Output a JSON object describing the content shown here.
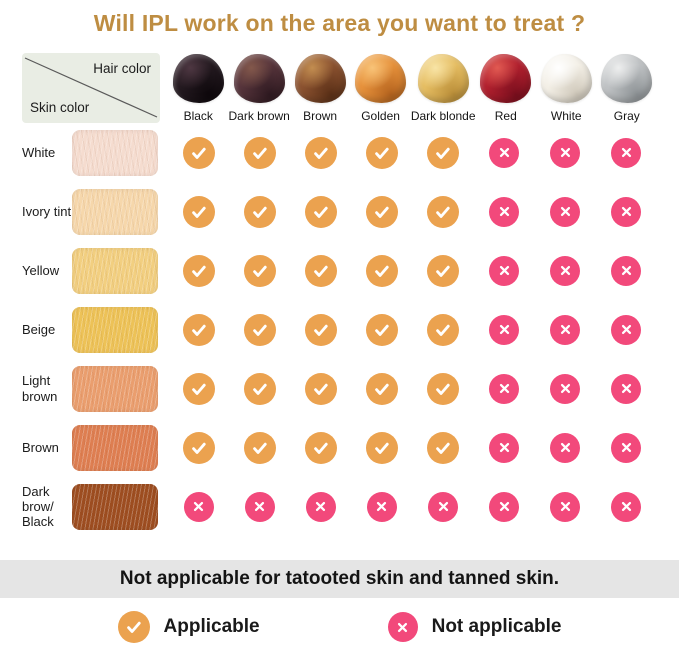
{
  "title": "Will IPL work on the area you want to treat ?",
  "axes": {
    "hair_label": "Hair color",
    "skin_label": "Skin color"
  },
  "hair_colors": [
    {
      "name": "Black",
      "base": "#241a20",
      "hi": "#4e3742",
      "lo": "#0e080c"
    },
    {
      "name": "Dark brown",
      "base": "#56343b",
      "hi": "#83584b",
      "lo": "#2f1a21"
    },
    {
      "name": "Brown",
      "base": "#8b5230",
      "hi": "#c28d50",
      "lo": "#5b3017"
    },
    {
      "name": "Golden",
      "base": "#e6913b",
      "hi": "#f8c378",
      "lo": "#b5641f"
    },
    {
      "name": "Dark blonde",
      "base": "#e5bd62",
      "hi": "#f8e4a6",
      "lo": "#ba8e39"
    },
    {
      "name": "Red",
      "base": "#b1202e",
      "hi": "#e15a52",
      "lo": "#7b0f1e"
    },
    {
      "name": "White",
      "base": "#f3efe6",
      "hi": "#ffffff",
      "lo": "#cfc8ba"
    },
    {
      "name": "Gray",
      "base": "#bfc2c4",
      "hi": "#edeeee",
      "lo": "#8e9396"
    }
  ],
  "skin_rows": [
    {
      "name": "White",
      "swatch": "#f5dccf"
    },
    {
      "name": "Ivory tint",
      "swatch": "#f6d7ab"
    },
    {
      "name": "Yellow",
      "swatch": "#f2cf80"
    },
    {
      "name": "Beige",
      "swatch": "#edc257"
    },
    {
      "name": "Light brown",
      "swatch": "#ea9e6e"
    },
    {
      "name": "Brown",
      "swatch": "#de7e51"
    },
    {
      "name": "Dark brow/ Black",
      "swatch": "#9d4d20"
    }
  ],
  "chart_data": {
    "type": "table",
    "title": "Will IPL work on the area you want to treat ?",
    "columns": [
      "Black",
      "Dark brown",
      "Brown",
      "Golden",
      "Dark blonde",
      "Red",
      "White",
      "Gray"
    ],
    "rows": [
      "White",
      "Ivory tint",
      "Yellow",
      "Beige",
      "Light brown",
      "Brown",
      "Dark brow/ Black"
    ],
    "values": [
      [
        "applicable",
        "applicable",
        "applicable",
        "applicable",
        "applicable",
        "not_applicable",
        "not_applicable",
        "not_applicable"
      ],
      [
        "applicable",
        "applicable",
        "applicable",
        "applicable",
        "applicable",
        "not_applicable",
        "not_applicable",
        "not_applicable"
      ],
      [
        "applicable",
        "applicable",
        "applicable",
        "applicable",
        "applicable",
        "not_applicable",
        "not_applicable",
        "not_applicable"
      ],
      [
        "applicable",
        "applicable",
        "applicable",
        "applicable",
        "applicable",
        "not_applicable",
        "not_applicable",
        "not_applicable"
      ],
      [
        "applicable",
        "applicable",
        "applicable",
        "applicable",
        "applicable",
        "not_applicable",
        "not_applicable",
        "not_applicable"
      ],
      [
        "applicable",
        "applicable",
        "applicable",
        "applicable",
        "applicable",
        "not_applicable",
        "not_applicable",
        "not_applicable"
      ],
      [
        "not_applicable",
        "not_applicable",
        "not_applicable",
        "not_applicable",
        "not_applicable",
        "not_applicable",
        "not_applicable",
        "not_applicable"
      ]
    ],
    "legend": [
      "Applicable",
      "Not applicable"
    ]
  },
  "note": "Not applicable for tatooted skin and tanned skin.",
  "legend": {
    "applicable": "Applicable",
    "not_applicable": "Not applicable"
  },
  "colors": {
    "title": "#be8d42",
    "applicable_icon": "#eba24f",
    "not_applicable_icon": "#f2497b",
    "corner_bg": "#e9ede4",
    "note_bar_bg": "#e5e5e5"
  }
}
